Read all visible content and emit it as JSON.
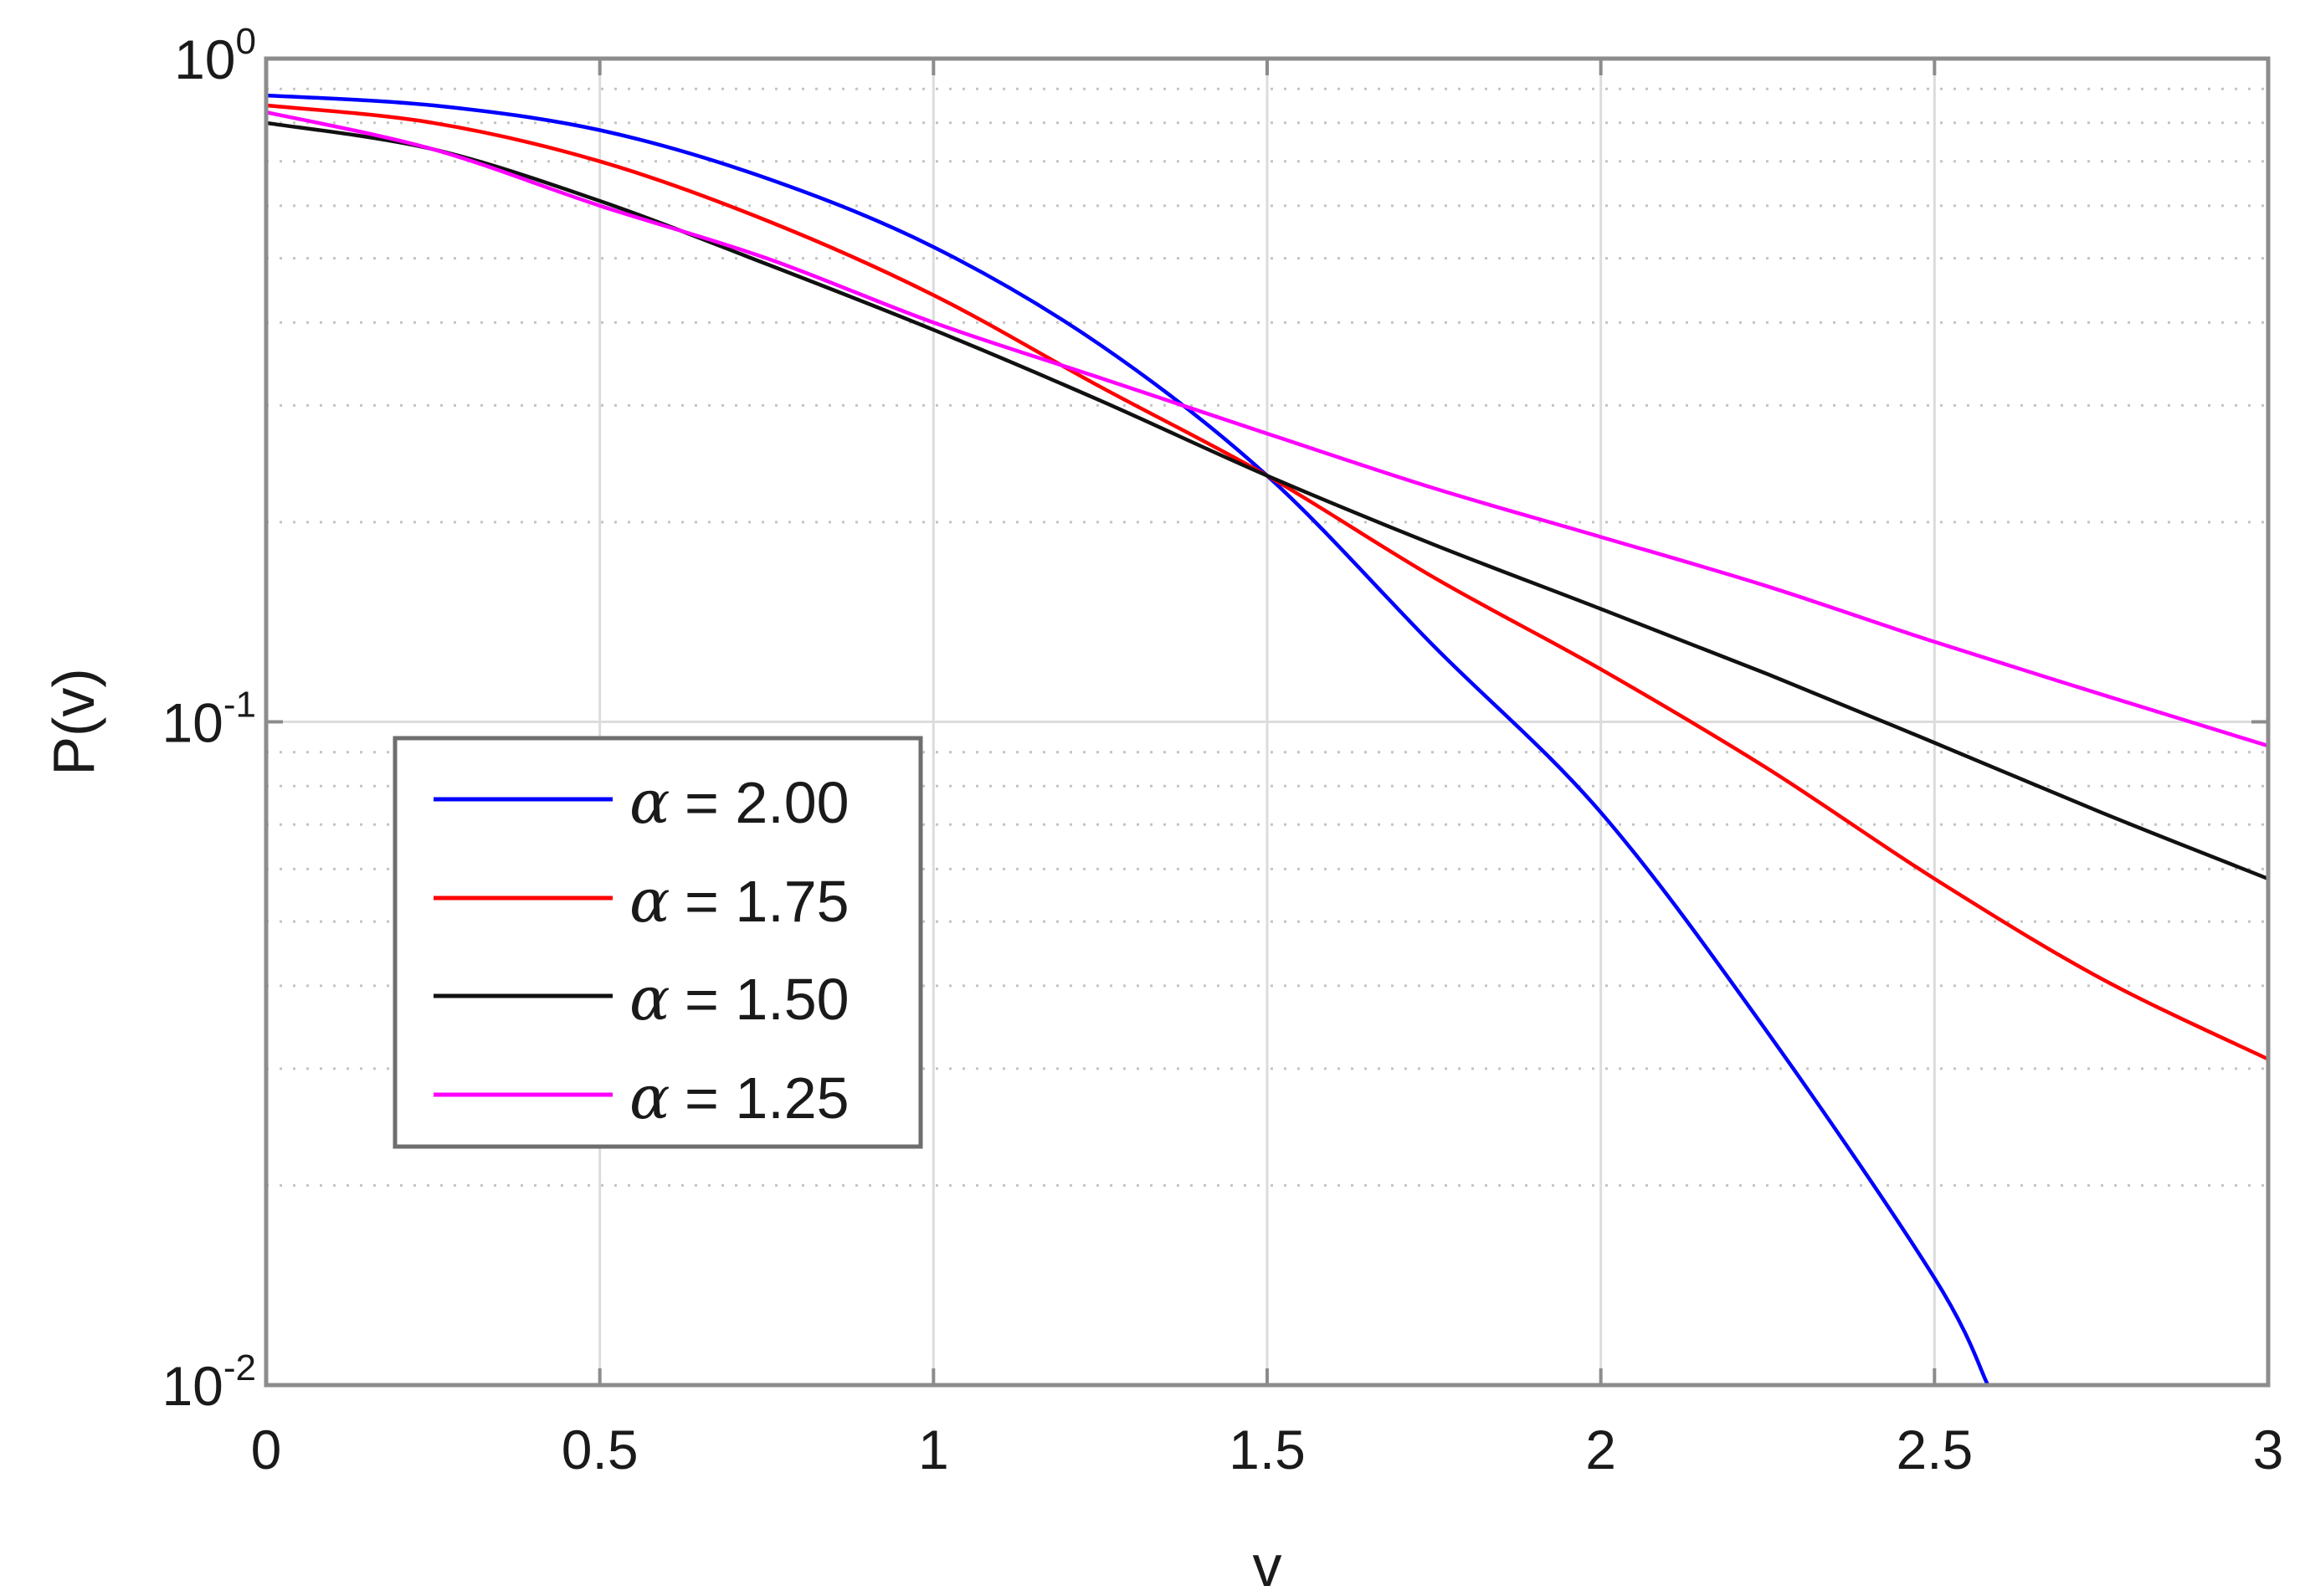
{
  "chart_data": {
    "type": "line",
    "xlabel": "v",
    "ylabel": "P(v)",
    "xlim": [
      0,
      3
    ],
    "ylim": [
      0.01,
      1
    ],
    "yscale": "log",
    "grid": true,
    "x_ticks": [
      "0",
      "0.5",
      "1",
      "1.5",
      "2",
      "2.5",
      "3"
    ],
    "y_ticks": [
      {
        "base": "10",
        "exp": "-2"
      },
      {
        "base": "10",
        "exp": "-1"
      },
      {
        "base": "10",
        "exp": "0"
      }
    ],
    "legend_position": "lower-left",
    "series": [
      {
        "name": "α = 2.00",
        "symbol": "α",
        "value": "= 2.00",
        "color": "#0000ff",
        "x": [
          0,
          0.25,
          0.5,
          0.75,
          1.0,
          1.25,
          1.5,
          1.75,
          2.0,
          2.25,
          2.5,
          2.58
        ],
        "y": [
          0.88,
          0.85,
          0.78,
          0.66,
          0.52,
          0.37,
          0.235,
          0.13,
          0.073,
          0.034,
          0.0145,
          0.01
        ]
      },
      {
        "name": "α = 1.75",
        "symbol": "α",
        "value": "= 1.75",
        "color": "#ff0000",
        "x": [
          0,
          0.25,
          0.5,
          0.75,
          1.0,
          1.25,
          1.5,
          1.75,
          2.0,
          2.25,
          2.5,
          2.75,
          3.0
        ],
        "y": [
          0.85,
          0.8,
          0.7,
          0.57,
          0.44,
          0.32,
          0.235,
          0.165,
          0.12,
          0.085,
          0.058,
          0.041,
          0.031
        ]
      },
      {
        "name": "α = 1.50",
        "symbol": "α",
        "value": "= 1.50",
        "color": "#111111",
        "x": [
          0,
          0.25,
          0.5,
          0.75,
          1.0,
          1.25,
          1.5,
          1.75,
          2.0,
          2.25,
          2.5,
          2.75,
          3.0
        ],
        "y": [
          0.8,
          0.73,
          0.61,
          0.49,
          0.39,
          0.305,
          0.235,
          0.185,
          0.148,
          0.118,
          0.093,
          0.073,
          0.058
        ]
      },
      {
        "name": "α = 1.25",
        "symbol": "α",
        "value": "= 1.25",
        "color": "#ff00ff",
        "x": [
          0,
          0.25,
          0.5,
          0.75,
          1.0,
          1.25,
          1.5,
          1.75,
          2.0,
          2.25,
          2.5,
          2.75,
          3.0
        ],
        "y": [
          0.83,
          0.73,
          0.6,
          0.5,
          0.4,
          0.33,
          0.272,
          0.225,
          0.19,
          0.16,
          0.132,
          0.11,
          0.092
        ]
      }
    ]
  }
}
